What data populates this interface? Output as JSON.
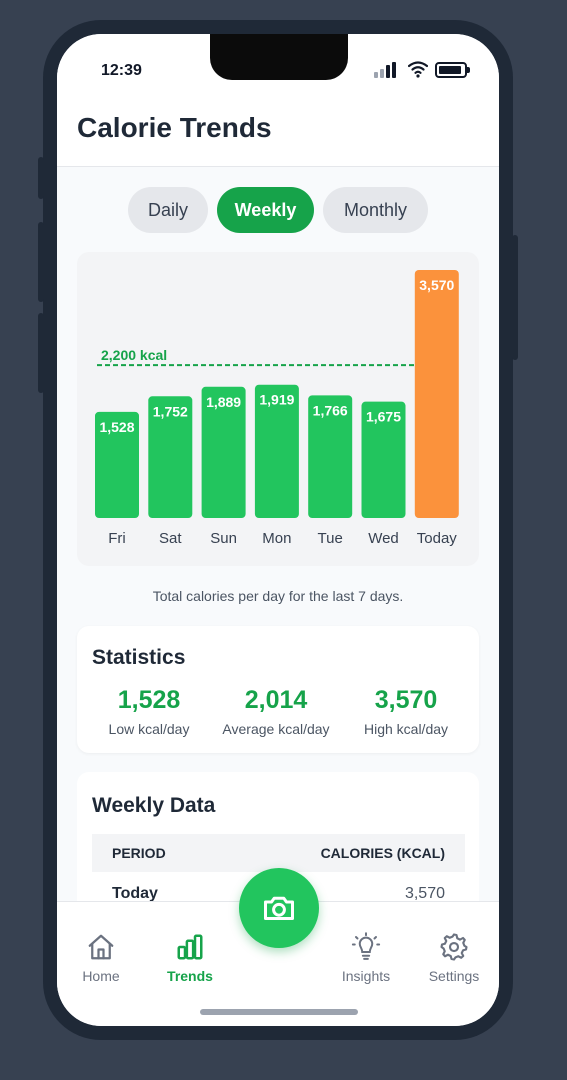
{
  "status": {
    "time": "12:39"
  },
  "header": {
    "title": "Calorie Trends"
  },
  "tabs": [
    {
      "label": "Daily",
      "active": false
    },
    {
      "label": "Weekly",
      "active": true
    },
    {
      "label": "Monthly",
      "active": false
    }
  ],
  "chart_data": {
    "type": "bar",
    "categories": [
      "Fri",
      "Sat",
      "Sun",
      "Mon",
      "Tue",
      "Wed",
      "Today"
    ],
    "values": [
      1528,
      1752,
      1889,
      1919,
      1766,
      1675,
      3570
    ],
    "value_labels": [
      "1,528",
      "1,752",
      "1,889",
      "1,919",
      "1,766",
      "1,675",
      "3,570"
    ],
    "goal": 2200,
    "goal_label": "2,200 kcal",
    "ylim": [
      0,
      3570
    ],
    "colors": {
      "normal": "#22c55e",
      "highlight": "#fb923c",
      "goal": "#16a34a"
    },
    "highlight_index": 6
  },
  "chart_caption": "Total calories per day for the last 7 days.",
  "statistics": {
    "title": "Statistics",
    "items": [
      {
        "value": "1,528",
        "label": "Low kcal/day"
      },
      {
        "value": "2,014",
        "label": "Average kcal/day"
      },
      {
        "value": "3,570",
        "label": "High kcal/day"
      }
    ]
  },
  "weekly_data": {
    "title": "Weekly Data",
    "columns": [
      "PERIOD",
      "CALORIES (KCAL)"
    ],
    "rows": [
      {
        "period": "Today",
        "calories": "3,570"
      }
    ]
  },
  "nav": {
    "items": [
      {
        "label": "Home",
        "icon": "home-icon"
      },
      {
        "label": "Trends",
        "icon": "bar-chart-icon",
        "active": true
      },
      {
        "label": "Insights",
        "icon": "lightbulb-icon"
      },
      {
        "label": "Settings",
        "icon": "gear-icon"
      }
    ],
    "fab_icon": "camera-icon"
  },
  "colors": {
    "accent": "#16a34a",
    "accent_light": "#22c55e",
    "highlight": "#fb923c"
  }
}
